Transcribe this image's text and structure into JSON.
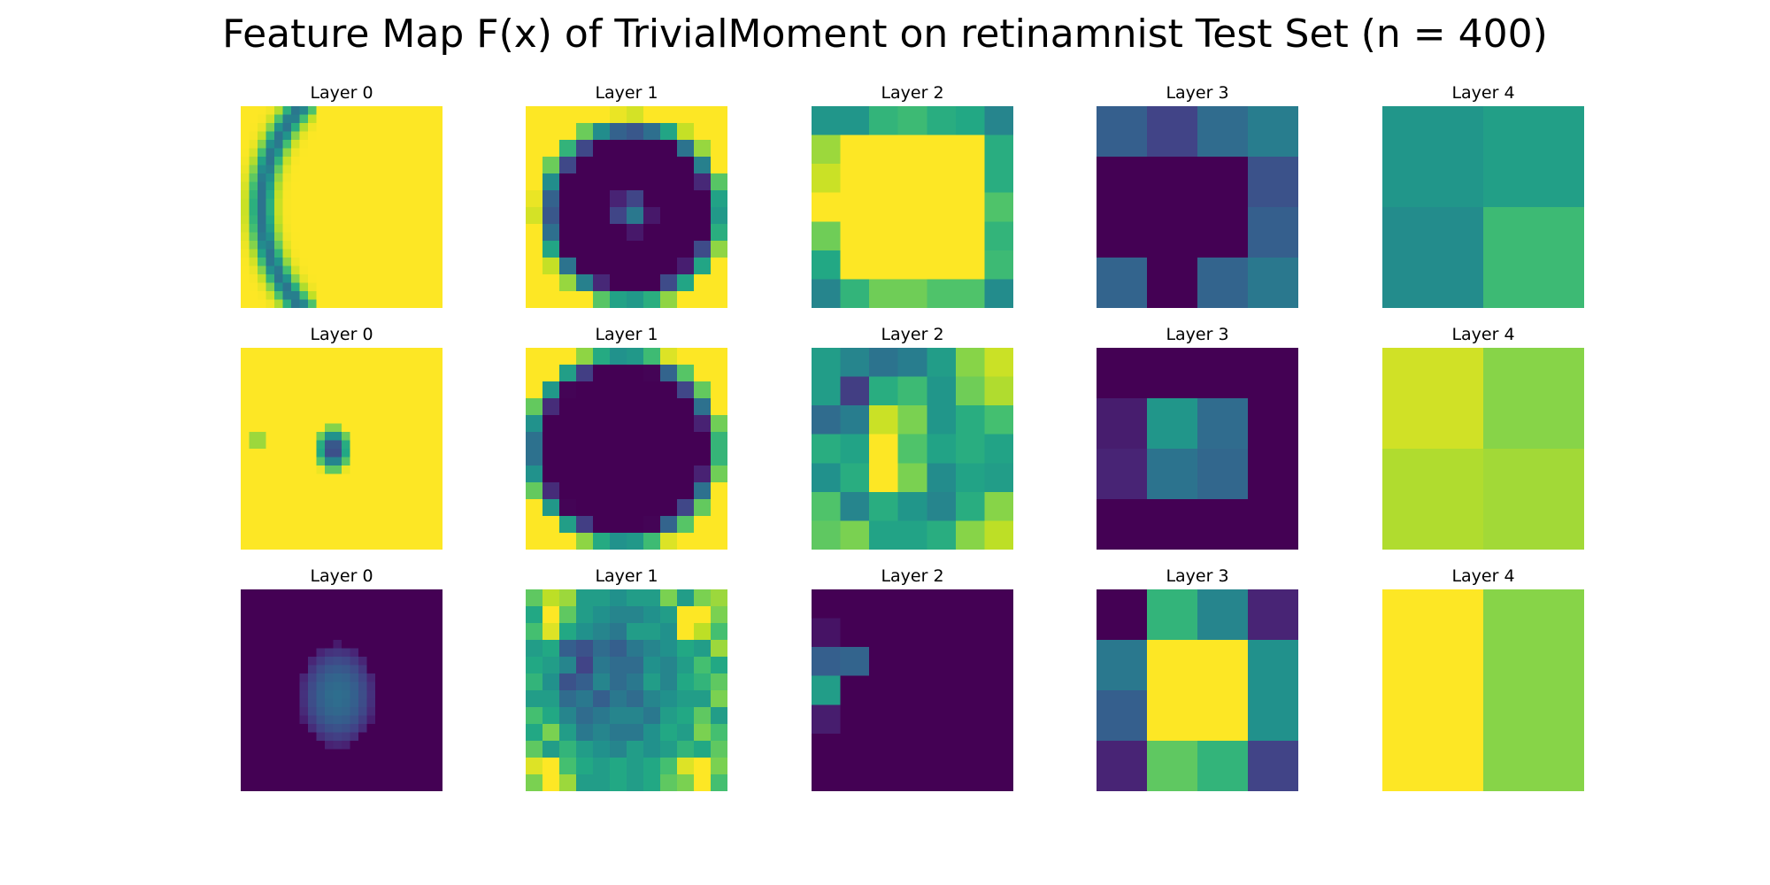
{
  "figure": {
    "title": "Feature Map F(x) of TrivialMoment on retinamnist Test Set (n = 400)"
  },
  "chart_data": {
    "type": "heatmap",
    "colormap": "viridis",
    "value_range": [
      0,
      1
    ],
    "grid": false,
    "rows": [
      {
        "panels": [
          {
            "title": "Layer 0",
            "size": 24,
            "pattern": "arc",
            "params": {
              "cx": 19.5,
              "cy": 11.5,
              "r": 17.5,
              "w": 1.4,
              "low": 0.38,
              "aspect": 1.0,
              "xmax": 8
            }
          },
          {
            "title": "Layer 1",
            "size": 12,
            "pattern": "ring",
            "params": {
              "cx": 5.8,
              "cy": 5.8,
              "r": 4.4,
              "w": 1.5,
              "center": 0.5,
              "inner_r": 1.4,
              "low": 0.0
            }
          },
          {
            "title": "Layer 2",
            "size": 7,
            "values": [
              [
                0.52,
                0.52,
                0.65,
                0.68,
                0.62,
                0.6,
                0.45
              ],
              [
                0.85,
                1.0,
                1.0,
                1.0,
                1.0,
                1.0,
                0.62
              ],
              [
                0.92,
                1.0,
                1.0,
                1.0,
                1.0,
                1.0,
                0.62
              ],
              [
                1.0,
                1.0,
                1.0,
                1.0,
                1.0,
                1.0,
                0.72
              ],
              [
                0.78,
                1.0,
                1.0,
                1.0,
                1.0,
                1.0,
                0.65
              ],
              [
                0.6,
                1.0,
                1.0,
                1.0,
                1.0,
                1.0,
                0.68
              ],
              [
                0.45,
                0.65,
                0.78,
                0.78,
                0.72,
                0.72,
                0.48
              ]
            ]
          },
          {
            "title": "Layer 3",
            "size": 4,
            "values": [
              [
                0.3,
                0.2,
                0.35,
                0.42
              ],
              [
                0.0,
                0.0,
                0.0,
                0.25
              ],
              [
                0.0,
                0.0,
                0.0,
                0.3
              ],
              [
                0.32,
                0.0,
                0.32,
                0.4
              ]
            ]
          },
          {
            "title": "Layer 4",
            "size": 2,
            "values": [
              [
                0.52,
                0.56
              ],
              [
                0.48,
                0.68
              ]
            ]
          }
        ]
      },
      {
        "panels": [
          {
            "title": "Layer 0",
            "size": 24,
            "pattern": "spot",
            "params": {
              "cx": 10.5,
              "cy": 11.6,
              "rx": 2.4,
              "ry": 3.2,
              "w": 1.5,
              "low": 0.1
            }
          },
          {
            "title": "Layer 1",
            "size": 12,
            "pattern": "ring",
            "params": {
              "cx": 5.3,
              "cy": 5.5,
              "r": 4.8,
              "w": 1.4,
              "center": 0.0,
              "inner_r": 3.2,
              "low": 0.0
            }
          },
          {
            "title": "Layer 2",
            "size": 7,
            "values": [
              [
                0.55,
                0.45,
                0.38,
                0.42,
                0.55,
                0.82,
                0.92
              ],
              [
                0.55,
                0.18,
                0.62,
                0.68,
                0.52,
                0.78,
                0.88
              ],
              [
                0.35,
                0.42,
                0.92,
                0.8,
                0.52,
                0.62,
                0.7
              ],
              [
                0.62,
                0.58,
                1.0,
                0.72,
                0.58,
                0.62,
                0.58
              ],
              [
                0.5,
                0.62,
                1.0,
                0.8,
                0.48,
                0.58,
                0.55
              ],
              [
                0.72,
                0.45,
                0.62,
                0.52,
                0.45,
                0.62,
                0.82
              ],
              [
                0.75,
                0.8,
                0.58,
                0.58,
                0.62,
                0.82,
                0.9
              ]
            ]
          },
          {
            "title": "Layer 3",
            "size": 4,
            "values": [
              [
                0.0,
                0.0,
                0.0,
                0.0
              ],
              [
                0.08,
                0.52,
                0.35,
                0.0
              ],
              [
                0.1,
                0.38,
                0.33,
                0.0
              ],
              [
                0.0,
                0.0,
                0.0,
                0.0
              ]
            ]
          },
          {
            "title": "Layer 4",
            "size": 2,
            "values": [
              [
                0.93,
                0.82
              ],
              [
                0.88,
                0.86
              ]
            ]
          }
        ]
      },
      {
        "panels": [
          {
            "title": "Layer 0",
            "size": 24,
            "pattern": "blob",
            "params": {
              "cx": 11.0,
              "cy": 12.2,
              "rx": 4.6,
              "ry": 6.2,
              "peak": 0.36,
              "low": 0.0
            }
          },
          {
            "title": "Layer 1",
            "size": 12,
            "values": [
              [
                0.75,
                0.9,
                0.85,
                0.55,
                0.55,
                0.5,
                0.55,
                0.55,
                0.8,
                0.55,
                0.8,
                0.85
              ],
              [
                0.6,
                1.0,
                0.75,
                0.55,
                0.5,
                0.45,
                0.45,
                0.5,
                0.55,
                1.0,
                1.0,
                0.8
              ],
              [
                0.7,
                0.95,
                0.6,
                0.5,
                0.45,
                0.4,
                0.55,
                0.55,
                0.5,
                1.0,
                0.9,
                0.7
              ],
              [
                0.55,
                0.6,
                0.3,
                0.25,
                0.35,
                0.3,
                0.4,
                0.45,
                0.5,
                0.6,
                0.55,
                0.85
              ],
              [
                0.6,
                0.55,
                0.45,
                0.2,
                0.4,
                0.35,
                0.35,
                0.5,
                0.45,
                0.55,
                0.7,
                0.6
              ],
              [
                0.65,
                0.5,
                0.25,
                0.3,
                0.45,
                0.35,
                0.4,
                0.55,
                0.45,
                0.6,
                0.65,
                0.75
              ],
              [
                0.55,
                0.55,
                0.35,
                0.4,
                0.3,
                0.4,
                0.35,
                0.45,
                0.5,
                0.55,
                0.55,
                0.8
              ],
              [
                0.7,
                0.6,
                0.45,
                0.35,
                0.4,
                0.45,
                0.45,
                0.4,
                0.55,
                0.6,
                0.75,
                0.55
              ],
              [
                0.6,
                0.8,
                0.55,
                0.4,
                0.45,
                0.4,
                0.4,
                0.5,
                0.6,
                0.55,
                0.8,
                0.7
              ],
              [
                0.75,
                0.55,
                0.65,
                0.55,
                0.5,
                0.45,
                0.55,
                0.5,
                0.55,
                0.65,
                0.6,
                0.75
              ],
              [
                0.95,
                1.0,
                0.7,
                0.6,
                0.55,
                0.6,
                0.55,
                0.6,
                0.7,
                0.95,
                1.0,
                0.8
              ],
              [
                0.8,
                1.0,
                0.85,
                0.55,
                0.55,
                0.6,
                0.55,
                0.6,
                0.75,
                0.8,
                1.0,
                0.7
              ]
            ]
          },
          {
            "title": "Layer 2",
            "size": 7,
            "values": [
              [
                0.0,
                0.0,
                0.0,
                0.0,
                0.0,
                0.0,
                0.0
              ],
              [
                0.05,
                0.0,
                0.0,
                0.0,
                0.0,
                0.0,
                0.0
              ],
              [
                0.3,
                0.32,
                0.0,
                0.0,
                0.0,
                0.0,
                0.0
              ],
              [
                0.55,
                0.0,
                0.0,
                0.0,
                0.0,
                0.0,
                0.0
              ],
              [
                0.08,
                0.0,
                0.0,
                0.0,
                0.0,
                0.0,
                0.0
              ],
              [
                0.0,
                0.0,
                0.0,
                0.0,
                0.0,
                0.0,
                0.0
              ],
              [
                0.0,
                0.0,
                0.0,
                0.0,
                0.0,
                0.0,
                0.0
              ]
            ]
          },
          {
            "title": "Layer 3",
            "size": 4,
            "values": [
              [
                0.0,
                0.65,
                0.45,
                0.1
              ],
              [
                0.4,
                1.0,
                1.0,
                0.5
              ],
              [
                0.3,
                1.0,
                1.0,
                0.5
              ],
              [
                0.1,
                0.75,
                0.65,
                0.2
              ]
            ]
          },
          {
            "title": "Layer 4",
            "size": 2,
            "values": [
              [
                1.0,
                0.82
              ],
              [
                1.0,
                0.82
              ]
            ]
          }
        ]
      }
    ]
  }
}
